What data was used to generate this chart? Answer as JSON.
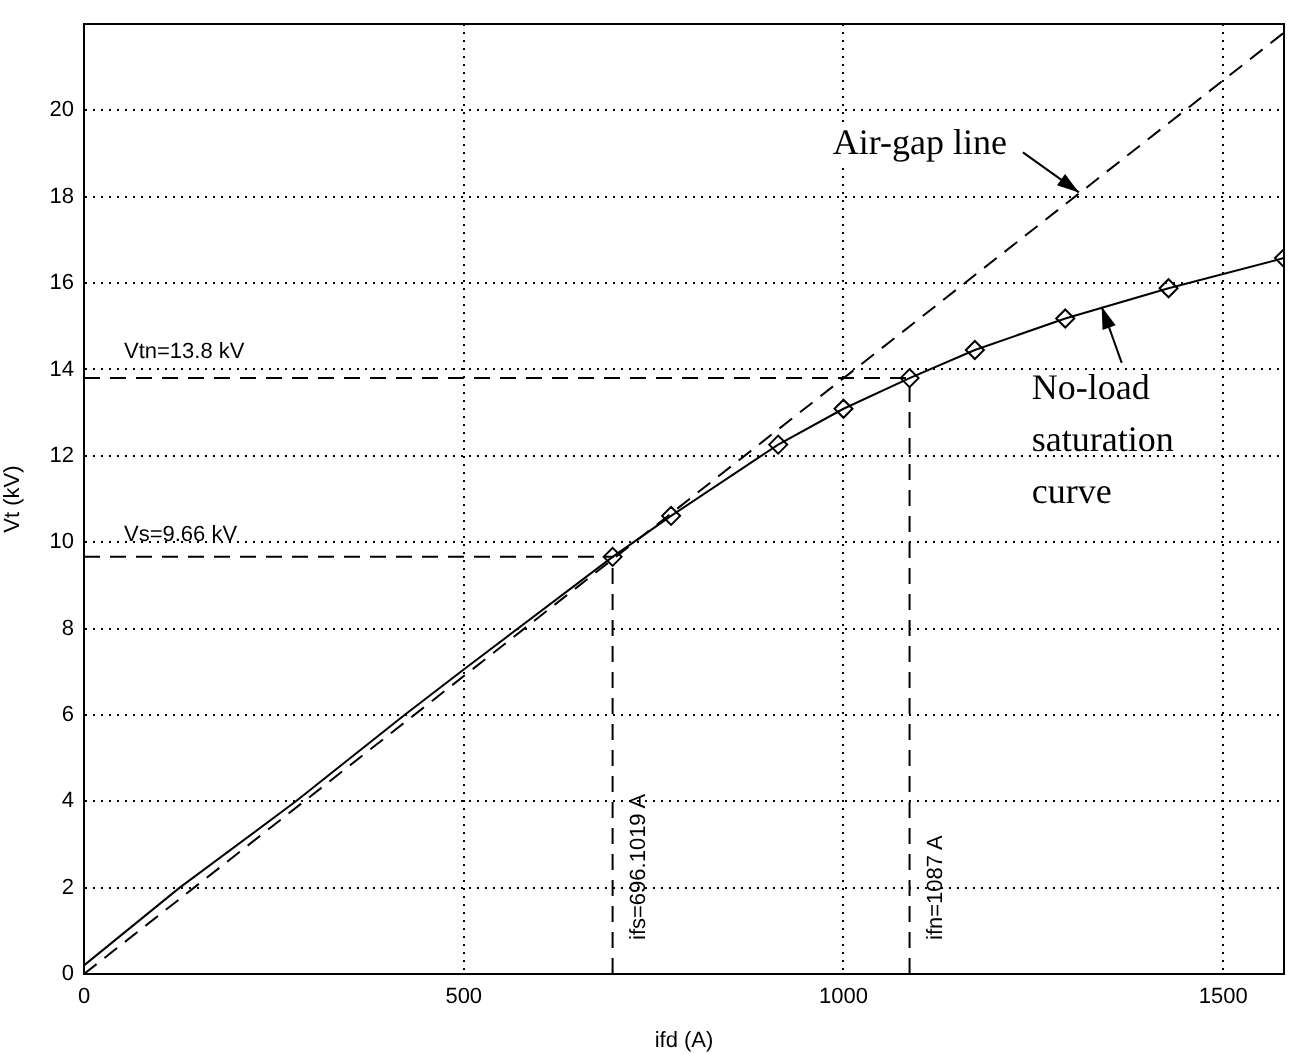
{
  "chart_data": {
    "type": "line",
    "xlabel": "ifd (A)",
    "ylabel": "Vt (kV)",
    "xlim": [
      0,
      1580
    ],
    "ylim": [
      0,
      22
    ],
    "xticks": [
      0,
      500,
      1000,
      1500
    ],
    "yticks": [
      0,
      2,
      4,
      6,
      8,
      10,
      12,
      14,
      16,
      18,
      20
    ],
    "grid": true,
    "legend": false,
    "series": [
      {
        "color": "#000000",
        "marker": "none",
        "line_style": "solid",
        "x": [
          0,
          126,
          279,
          422,
          500,
          696,
          773,
          914,
          1000,
          1087,
          1173,
          1292,
          1428,
          1580
        ],
        "values": [
          0.2,
          2,
          4,
          6,
          7.05,
          9.66,
          10.61,
          12.26,
          13.09,
          13.8,
          14.45,
          15.18,
          15.88,
          16.58
        ]
      },
      {
        "type": "scatter",
        "color": "#000000",
        "marker": "diamond",
        "x": [
          696,
          773,
          914,
          1000,
          1087,
          1173,
          1292,
          1428,
          1580
        ],
        "values": [
          9.66,
          10.61,
          12.26,
          13.09,
          13.8,
          14.45,
          15.18,
          15.88,
          16.58
        ]
      },
      {
        "color": "#000000",
        "marker": "none",
        "line_style": "dashed",
        "x": [
          0,
          1580
        ],
        "values": [
          0,
          21.8
        ]
      },
      {
        "color": "#000000",
        "marker": "none",
        "line_style": "dashed",
        "x": [
          0,
          1087
        ],
        "values": [
          13.8,
          13.8
        ]
      },
      {
        "color": "#000000",
        "marker": "none",
        "line_style": "dashed",
        "x": [
          1087,
          1087
        ],
        "values": [
          0,
          13.8
        ]
      },
      {
        "color": "#000000",
        "marker": "none",
        "line_style": "dashed",
        "x": [
          0,
          696
        ],
        "values": [
          9.66,
          9.66
        ]
      },
      {
        "color": "#000000",
        "marker": "none",
        "line_style": "dashed",
        "x": [
          696,
          696
        ],
        "values": [
          0,
          9.66
        ]
      }
    ],
    "annotations": [
      {
        "text": "Vtn=13.8 kV",
        "x": 0,
        "y": 13.8
      },
      {
        "text": "Vs=9.66 kV",
        "x": 0,
        "y": 9.66
      },
      {
        "text": "ifs=696.1019 A",
        "x": 696,
        "y": 0
      },
      {
        "text": "ifn=1087 A",
        "x": 1087,
        "y": 0
      },
      {
        "text": "Air-gap line",
        "x": 1310,
        "y": 18.1
      },
      {
        "text": "No-load saturation curve",
        "x": 1340,
        "y": 15.45
      }
    ]
  }
}
